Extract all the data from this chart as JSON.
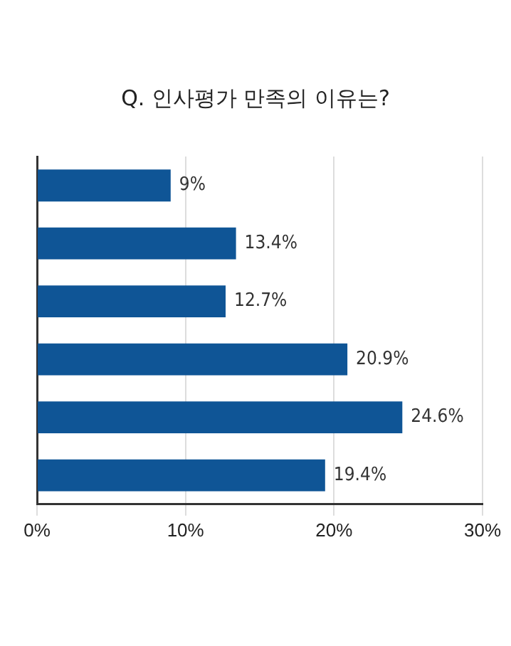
{
  "chart_data": {
    "type": "bar",
    "orientation": "horizontal",
    "title": "Q. 인사평가 만족의 이유는?",
    "categories": [
      null,
      null,
      null,
      null,
      null,
      null
    ],
    "values": [
      9,
      13.4,
      12.7,
      20.9,
      24.6,
      19.4
    ],
    "value_labels": [
      "9%",
      "13.4%",
      "12.7%",
      "20.9%",
      "24.6%",
      "19.4%"
    ],
    "color": "#0f5596",
    "xlim": [
      0,
      30
    ],
    "xticks": [
      {
        "value": 0,
        "label": "0%"
      },
      {
        "value": 10,
        "label": "10%"
      },
      {
        "value": 20,
        "label": "20%"
      },
      {
        "value": 30,
        "label": "30%"
      }
    ],
    "grid": "x",
    "legend": false
  }
}
